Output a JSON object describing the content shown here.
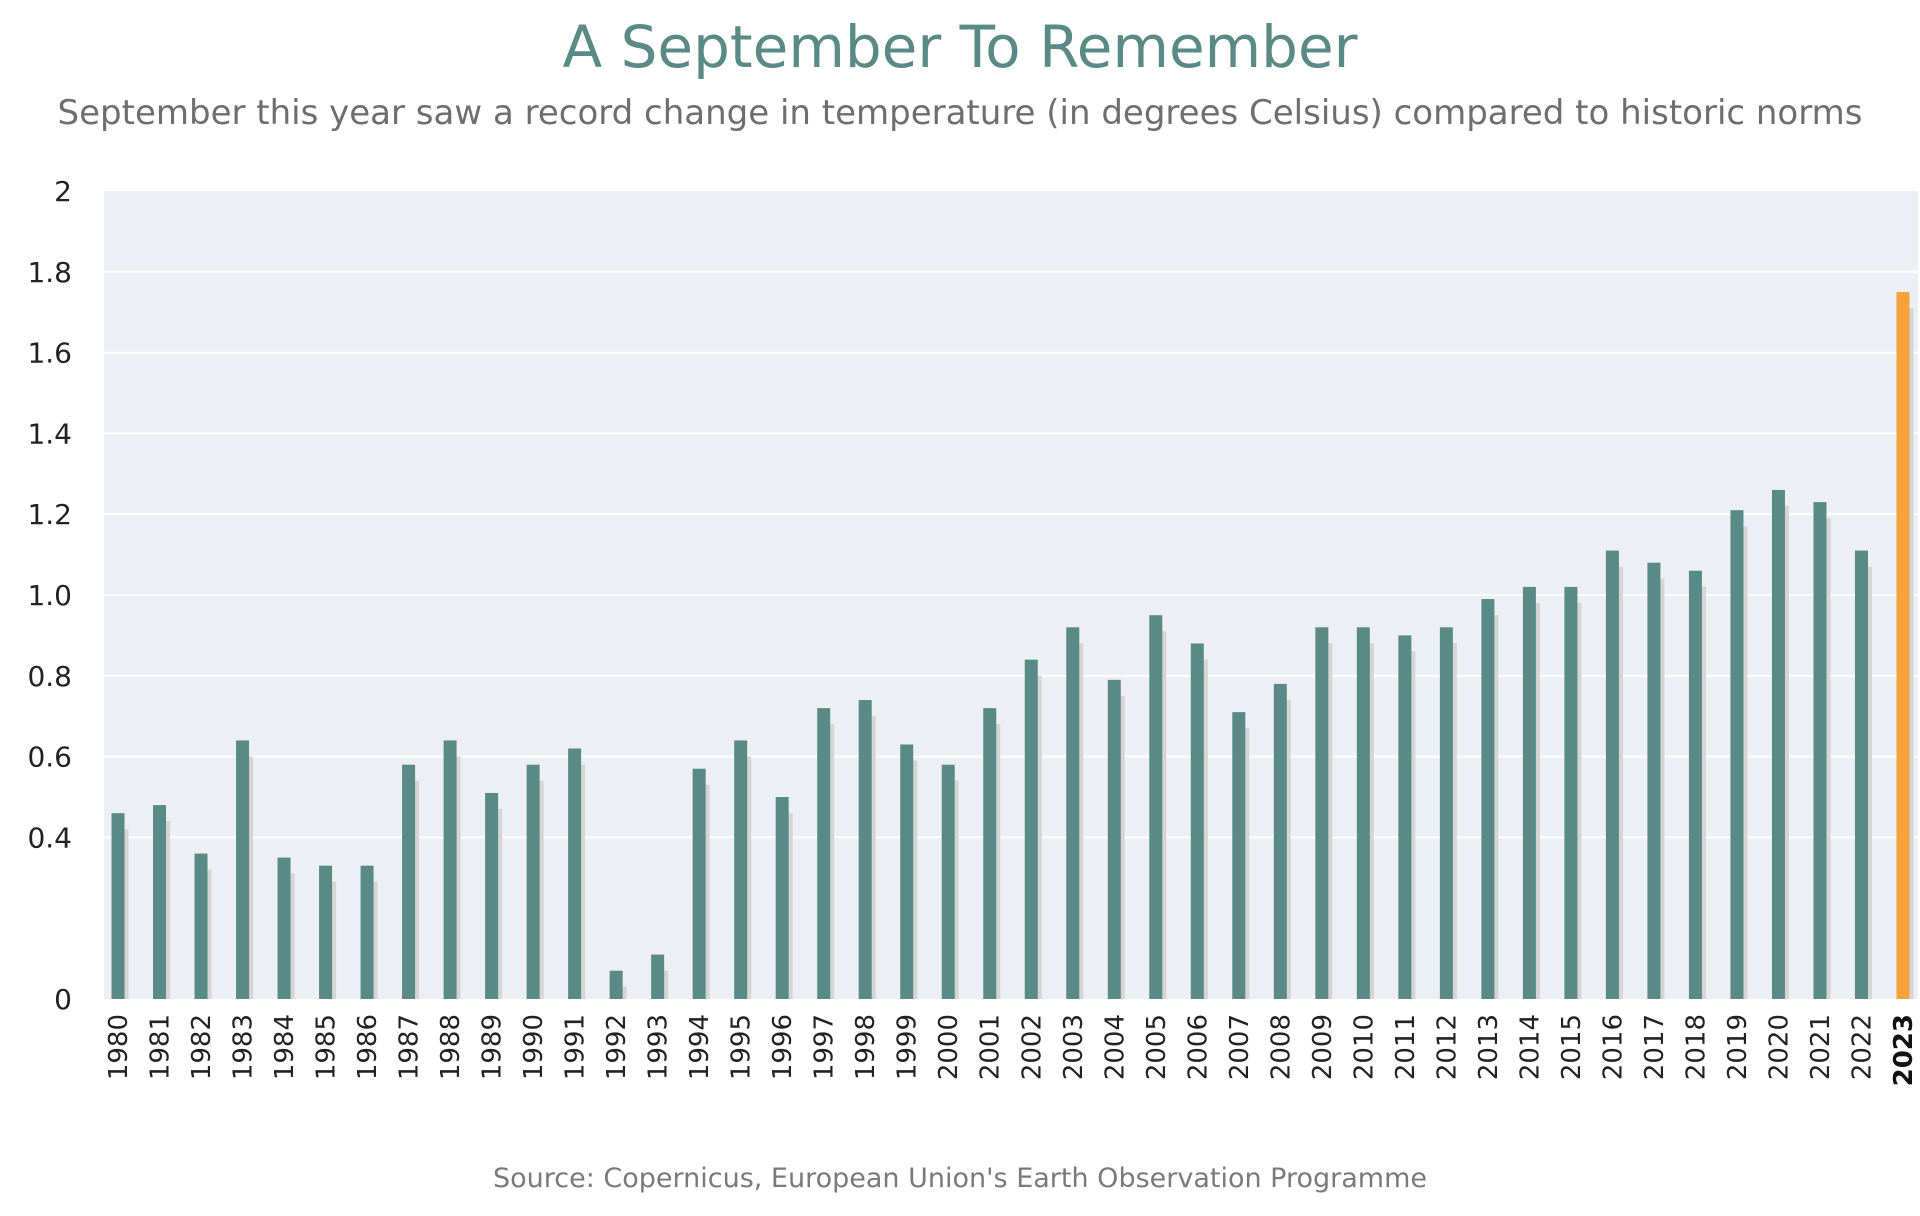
{
  "chart_data": {
    "type": "bar",
    "title": "A September To Remember",
    "subtitle": "September this year saw a record change in temperature (in degrees Celsius) compared to historic norms",
    "source": "Source: Copernicus, European Union's Earth Observation Programme",
    "xlabel": "",
    "ylabel": "",
    "ylim": [
      0,
      2
    ],
    "yticks": [
      0,
      0.4,
      0.6,
      0.8,
      1.0,
      1.2,
      1.4,
      1.6,
      1.8,
      2
    ],
    "ytick_labels": [
      "0",
      "0.4",
      "0.6",
      "0.8",
      "1.0",
      "1.2",
      "1.4",
      "1.6",
      "1.8",
      "2"
    ],
    "categories": [
      "1980",
      "1981",
      "1982",
      "1983",
      "1984",
      "1985",
      "1986",
      "1987",
      "1988",
      "1989",
      "1990",
      "1991",
      "1992",
      "1993",
      "1994",
      "1995",
      "1996",
      "1997",
      "1998",
      "1999",
      "2000",
      "2001",
      "2002",
      "2003",
      "2004",
      "2005",
      "2006",
      "2007",
      "2008",
      "2009",
      "2010",
      "2011",
      "2012",
      "2013",
      "2014",
      "2015",
      "2016",
      "2017",
      "2018",
      "2019",
      "2020",
      "2021",
      "2022",
      "2023"
    ],
    "values": [
      0.46,
      0.48,
      0.36,
      0.64,
      0.35,
      0.33,
      0.33,
      0.58,
      0.64,
      0.51,
      0.58,
      0.62,
      0.07,
      0.11,
      0.57,
      0.64,
      0.5,
      0.72,
      0.74,
      0.63,
      0.58,
      0.72,
      0.84,
      0.92,
      0.79,
      0.95,
      0.88,
      0.71,
      0.78,
      0.92,
      0.92,
      0.9,
      0.92,
      0.99,
      1.02,
      1.02,
      1.11,
      1.08,
      1.06,
      1.21,
      1.26,
      1.23,
      1.11,
      1.75
    ],
    "highlight_category": "2023",
    "grid": true,
    "legend": "none",
    "colors": {
      "bar": "#5a8a85",
      "highlight_bar": "#f7a23b",
      "shadow": "#d5d5d5",
      "plot_background": "#eceff3",
      "gridline": "#ffffff",
      "title": "#5a8a85",
      "subtitle": "#6e6e6e",
      "source": "#7a7a7a"
    }
  }
}
